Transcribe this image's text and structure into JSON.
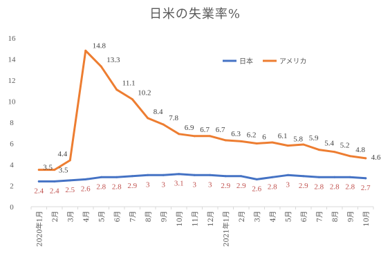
{
  "chart_data": {
    "type": "line",
    "title": "日米の失業率%",
    "xlabel": "",
    "ylabel": "",
    "ylim": [
      0,
      16
    ],
    "yticks": [
      0,
      2,
      4,
      6,
      8,
      10,
      12,
      14,
      16
    ],
    "grid": false,
    "legend_position": "top-right",
    "categories": [
      "2020年1月",
      "2月",
      "3月",
      "4月",
      "5月",
      "6月",
      "7月",
      "8月",
      "9月",
      "10月",
      "11月",
      "12月",
      "2021年1月",
      "2月",
      "3月",
      "4月",
      "5月",
      "6月",
      "7月",
      "8月",
      "9月",
      "10月"
    ],
    "series": [
      {
        "name": "日本",
        "color": "#4472c4",
        "values": [
          2.4,
          2.4,
          2.5,
          2.6,
          2.8,
          2.8,
          2.9,
          3,
          3,
          3.1,
          3,
          3,
          2.9,
          2.9,
          2.6,
          2.8,
          3,
          2.9,
          2.8,
          2.8,
          2.8,
          2.7
        ],
        "labels": [
          "2.4",
          "2.4",
          "2.5",
          "2.6",
          "2.8",
          "2.8",
          "2.9",
          "3",
          "3",
          "3.1",
          "3",
          "3",
          "2.9",
          "2.9",
          "2.6",
          "2.8",
          "3",
          "2.9",
          "2.8",
          "2.8",
          "2.8",
          "2.7"
        ]
      },
      {
        "name": "アメリカ",
        "color": "#ed7d31",
        "values": [
          3.5,
          3.5,
          4.4,
          14.8,
          13.3,
          11.1,
          10.2,
          8.4,
          7.8,
          6.9,
          6.7,
          6.7,
          6.3,
          6.2,
          6,
          6.1,
          5.8,
          5.9,
          5.4,
          5.2,
          4.8,
          4.6
        ],
        "labels": [
          "3.5",
          "3.5",
          "4.4",
          "14.8",
          "13.3",
          "11.1",
          "10.2",
          "8.4",
          "7.8",
          "6.9",
          "6.7",
          "6.7",
          "6.3",
          "6.2",
          "6",
          "6.1",
          "5.8",
          "5.9",
          "5.4",
          "5.2",
          "4.8",
          "4.6"
        ]
      }
    ]
  }
}
